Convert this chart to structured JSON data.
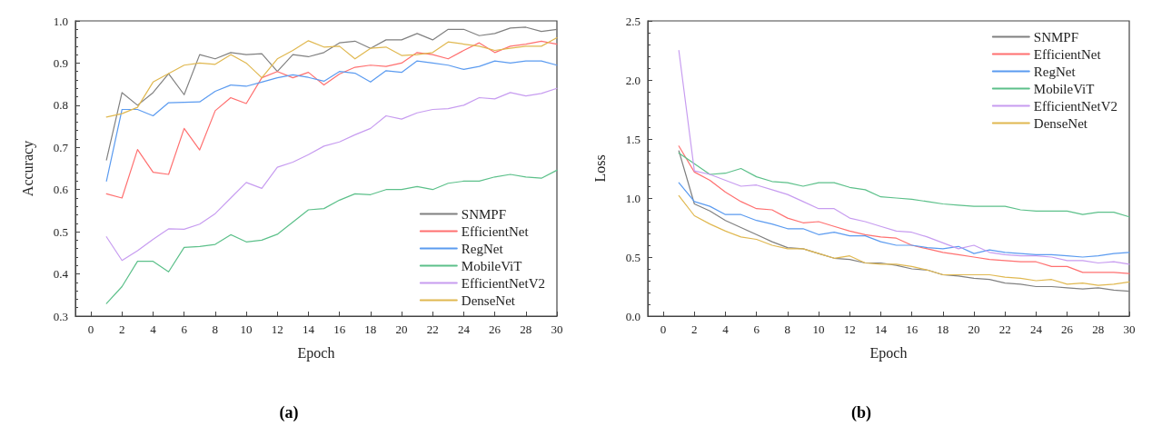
{
  "chart_data": [
    {
      "type": "line",
      "xlabel": "Epoch",
      "ylabel": "Accuracy",
      "annotations": [
        "(a)"
      ],
      "x": [
        1,
        2,
        3,
        4,
        5,
        6,
        7,
        8,
        9,
        10,
        11,
        12,
        13,
        14,
        15,
        16,
        17,
        18,
        19,
        20,
        21,
        22,
        23,
        24,
        25,
        26,
        27,
        28,
        29,
        30
      ],
      "xlim": [
        -1,
        30
      ],
      "xticks": [
        0,
        2,
        4,
        6,
        8,
        10,
        12,
        14,
        16,
        18,
        20,
        22,
        24,
        26,
        28,
        30
      ],
      "ylim": [
        0.3,
        1.0
      ],
      "yticks": [
        {
          "value": 0.3,
          "label": "0.3"
        },
        {
          "value": 0.4,
          "label": "0.4"
        },
        {
          "value": 0.5,
          "label": "0.5"
        },
        {
          "value": 0.6,
          "label": "0.6"
        },
        {
          "value": 0.7,
          "label": "0.7"
        },
        {
          "value": 0.8,
          "label": "0.8"
        },
        {
          "value": 0.9,
          "label": "0.9"
        },
        {
          "value": 1.0,
          "label": "1.0"
        }
      ],
      "grid": false,
      "legend": "bottom right",
      "marker": "none",
      "line_style": "solid",
      "series": [
        {
          "name": "SNMPF",
          "color": "#808080",
          "values": [
            0.67,
            0.83,
            0.8,
            0.83,
            0.875,
            0.825,
            0.92,
            0.91,
            0.925,
            0.92,
            0.922,
            0.88,
            0.92,
            0.915,
            0.925,
            0.948,
            0.952,
            0.935,
            0.955,
            0.955,
            0.97,
            0.955,
            0.98,
            0.98,
            0.965,
            0.97,
            0.983,
            0.985,
            0.975,
            0.98
          ]
        },
        {
          "name": "EfficientNet",
          "color": "#ff7070",
          "values": [
            0.59,
            0.58,
            0.695,
            0.641,
            0.636,
            0.745,
            0.694,
            0.787,
            0.818,
            0.804,
            0.865,
            0.88,
            0.865,
            0.878,
            0.848,
            0.874,
            0.89,
            0.895,
            0.892,
            0.9,
            0.925,
            0.92,
            0.91,
            0.93,
            0.948,
            0.925,
            0.94,
            0.945,
            0.952,
            0.945
          ]
        },
        {
          "name": "RegNet",
          "color": "#5b9bf0",
          "values": [
            0.62,
            0.79,
            0.79,
            0.775,
            0.806,
            0.807,
            0.808,
            0.833,
            0.848,
            0.845,
            0.855,
            0.865,
            0.872,
            0.866,
            0.857,
            0.88,
            0.876,
            0.855,
            0.882,
            0.878,
            0.905,
            0.9,
            0.895,
            0.885,
            0.892,
            0.905,
            0.9,
            0.905,
            0.905,
            0.895
          ]
        },
        {
          "name": "MobileViT",
          "color": "#5cc08a",
          "values": [
            0.33,
            0.37,
            0.43,
            0.43,
            0.405,
            0.463,
            0.465,
            0.47,
            0.493,
            0.476,
            0.48,
            0.494,
            0.523,
            0.552,
            0.555,
            0.575,
            0.59,
            0.588,
            0.6,
            0.6,
            0.607,
            0.6,
            0.615,
            0.62,
            0.62,
            0.63,
            0.636,
            0.63,
            0.627,
            0.646
          ]
        },
        {
          "name": "EfficientNetV2",
          "color": "#c79cf0",
          "values": [
            0.488,
            0.432,
            0.455,
            0.482,
            0.507,
            0.506,
            0.518,
            0.543,
            0.58,
            0.617,
            0.603,
            0.653,
            0.665,
            0.683,
            0.703,
            0.713,
            0.73,
            0.745,
            0.775,
            0.767,
            0.782,
            0.79,
            0.792,
            0.8,
            0.818,
            0.815,
            0.83,
            0.822,
            0.828,
            0.84
          ]
        },
        {
          "name": "DenseNet",
          "color": "#e0b850",
          "values": [
            0.772,
            0.78,
            0.795,
            0.855,
            0.875,
            0.895,
            0.9,
            0.897,
            0.92,
            0.9,
            0.865,
            0.91,
            0.93,
            0.953,
            0.938,
            0.94,
            0.91,
            0.935,
            0.938,
            0.918,
            0.92,
            0.925,
            0.95,
            0.945,
            0.94,
            0.93,
            0.935,
            0.94,
            0.94,
            0.96
          ]
        }
      ]
    },
    {
      "type": "line",
      "xlabel": "Epoch",
      "ylabel": "Loss",
      "annotations": [
        "(b)"
      ],
      "x": [
        1,
        2,
        3,
        4,
        5,
        6,
        7,
        8,
        9,
        10,
        11,
        12,
        13,
        14,
        15,
        16,
        17,
        18,
        19,
        20,
        21,
        22,
        23,
        24,
        25,
        26,
        27,
        28,
        29,
        30
      ],
      "xlim": [
        -1,
        30
      ],
      "xticks": [
        0,
        2,
        4,
        6,
        8,
        10,
        12,
        14,
        16,
        18,
        20,
        22,
        24,
        26,
        28,
        30
      ],
      "ylim": [
        0,
        2.5
      ],
      "yticks": [
        {
          "value": 0,
          "label": "0.0"
        },
        {
          "value": 0.5,
          "label": "0.5"
        },
        {
          "value": 1.0,
          "label": "1.0"
        },
        {
          "value": 1.5,
          "label": "1.5"
        },
        {
          "value": 2.0,
          "label": "2.0"
        },
        {
          "value": 2.5,
          "label": "2.5"
        }
      ],
      "grid": false,
      "legend": "top right",
      "marker": "none",
      "line_style": "solid",
      "series": [
        {
          "name": "SNMPF",
          "color": "#808080",
          "values": [
            1.4,
            0.95,
            0.89,
            0.81,
            0.75,
            0.69,
            0.63,
            0.58,
            0.57,
            0.53,
            0.49,
            0.48,
            0.45,
            0.45,
            0.43,
            0.4,
            0.39,
            0.35,
            0.34,
            0.32,
            0.31,
            0.28,
            0.27,
            0.25,
            0.25,
            0.24,
            0.23,
            0.24,
            0.22,
            0.21
          ]
        },
        {
          "name": "EfficientNet",
          "color": "#ff7070",
          "values": [
            1.44,
            1.22,
            1.15,
            1.05,
            0.97,
            0.91,
            0.9,
            0.83,
            0.79,
            0.8,
            0.76,
            0.72,
            0.69,
            0.67,
            0.66,
            0.6,
            0.57,
            0.54,
            0.52,
            0.5,
            0.48,
            0.47,
            0.46,
            0.46,
            0.42,
            0.42,
            0.37,
            0.37,
            0.37,
            0.36
          ]
        },
        {
          "name": "RegNet",
          "color": "#5b9bf0",
          "values": [
            1.13,
            0.97,
            0.93,
            0.86,
            0.86,
            0.81,
            0.78,
            0.74,
            0.74,
            0.69,
            0.71,
            0.68,
            0.68,
            0.63,
            0.6,
            0.6,
            0.58,
            0.57,
            0.59,
            0.53,
            0.56,
            0.54,
            0.53,
            0.52,
            0.52,
            0.51,
            0.5,
            0.51,
            0.53,
            0.54
          ]
        },
        {
          "name": "MobileViT",
          "color": "#5cc08a",
          "values": [
            1.38,
            1.29,
            1.2,
            1.21,
            1.25,
            1.18,
            1.14,
            1.13,
            1.1,
            1.13,
            1.13,
            1.09,
            1.07,
            1.01,
            1.0,
            0.99,
            0.97,
            0.95,
            0.94,
            0.93,
            0.93,
            0.93,
            0.9,
            0.89,
            0.89,
            0.89,
            0.86,
            0.88,
            0.88,
            0.84
          ]
        },
        {
          "name": "EfficientNetV2",
          "color": "#c79cf0",
          "values": [
            2.25,
            1.23,
            1.2,
            1.15,
            1.1,
            1.11,
            1.07,
            1.03,
            0.97,
            0.91,
            0.91,
            0.83,
            0.8,
            0.76,
            0.72,
            0.71,
            0.67,
            0.62,
            0.57,
            0.6,
            0.54,
            0.52,
            0.51,
            0.51,
            0.5,
            0.47,
            0.47,
            0.45,
            0.46,
            0.44
          ]
        },
        {
          "name": "DenseNet",
          "color": "#e0b850",
          "values": [
            1.02,
            0.85,
            0.78,
            0.72,
            0.67,
            0.65,
            0.6,
            0.57,
            0.57,
            0.53,
            0.49,
            0.51,
            0.45,
            0.44,
            0.44,
            0.42,
            0.39,
            0.35,
            0.35,
            0.35,
            0.35,
            0.33,
            0.32,
            0.3,
            0.31,
            0.27,
            0.28,
            0.26,
            0.27,
            0.29
          ]
        }
      ]
    }
  ]
}
